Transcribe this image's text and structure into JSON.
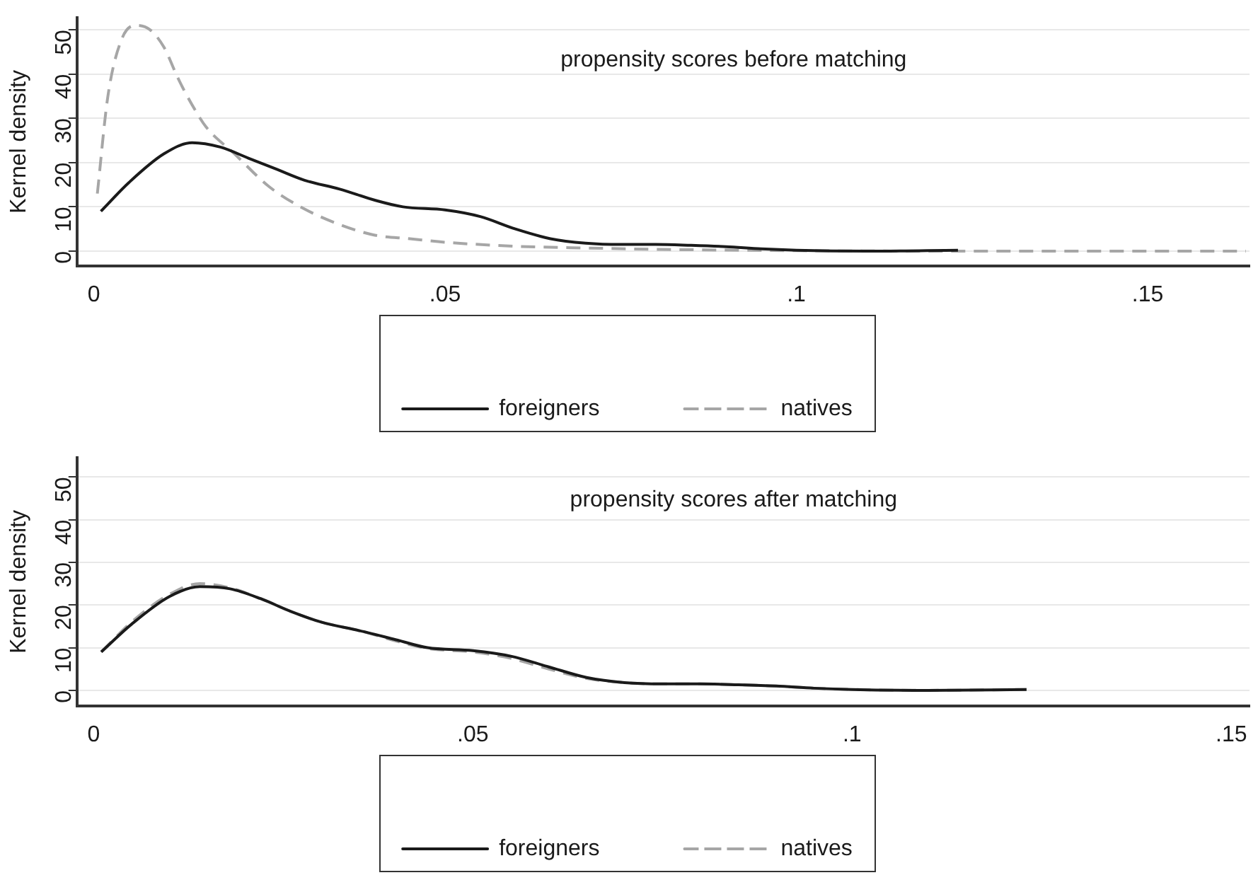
{
  "chart_data": [
    {
      "type": "line",
      "title": "propensity scores before matching",
      "ylabel": "Kernel density",
      "xlim": [
        -0.0024,
        0.1645
      ],
      "xticks": [
        0,
        {
          "value": 0.05,
          "label": ".05"
        },
        {
          "value": 0.1,
          "label": ".1"
        },
        {
          "value": 0.15,
          "label": ".15"
        }
      ],
      "ylim": [
        -3.3,
        52.7
      ],
      "yticks": [
        0,
        10,
        20,
        30,
        40,
        50
      ],
      "grid": "y",
      "legend": "bottom",
      "marker": "none",
      "series": [
        {
          "name": "foreigners",
          "color": "#1a1a1a",
          "line_style": "solid",
          "x": [
            0.001,
            0.005,
            0.01,
            0.014,
            0.018,
            0.022,
            0.026,
            0.03,
            0.035,
            0.04,
            0.044,
            0.05,
            0.055,
            0.06,
            0.065,
            0.07,
            0.075,
            0.08,
            0.085,
            0.09,
            0.095,
            0.1,
            0.11,
            0.123
          ],
          "values": [
            9,
            15.5,
            22,
            24.5,
            23.5,
            21,
            18.5,
            16,
            14,
            11.5,
            10,
            9.3,
            7.8,
            5,
            2.8,
            1.8,
            1.5,
            1.5,
            1.3,
            1,
            0.5,
            0.2,
            0,
            0.2
          ]
        },
        {
          "name": "natives",
          "color": "#a6a6a6",
          "line_style": "dashed",
          "x": [
            0.0005,
            0.002,
            0.004,
            0.006,
            0.008,
            0.01,
            0.012,
            0.014,
            0.016,
            0.02,
            0.025,
            0.03,
            0.035,
            0.04,
            0.045,
            0.05,
            0.06,
            0.07,
            0.08,
            0.1,
            0.12,
            0.164
          ],
          "values": [
            13,
            35,
            48,
            51,
            50,
            46,
            39,
            33,
            28,
            22,
            14.5,
            9.5,
            6,
            3.6,
            2.8,
            2,
            1.1,
            0.7,
            0.4,
            0.1,
            0,
            0
          ]
        }
      ]
    },
    {
      "type": "line",
      "title": "propensity scores after matching",
      "ylabel": "Kernel density",
      "xlim": [
        -0.0022,
        0.1524
      ],
      "xticks": [
        0,
        {
          "value": 0.05,
          "label": ".05"
        },
        {
          "value": 0.1,
          "label": ".1"
        },
        {
          "value": 0.15,
          "label": ".15"
        }
      ],
      "ylim": [
        -3.6,
        54.5
      ],
      "yticks": [
        0,
        10,
        20,
        30,
        40,
        50
      ],
      "grid": "y",
      "legend": "bottom",
      "marker": "none",
      "series": [
        {
          "name": "foreigners",
          "color": "#1a1a1a",
          "line_style": "solid",
          "x": [
            0.001,
            0.005,
            0.01,
            0.014,
            0.018,
            0.022,
            0.026,
            0.03,
            0.035,
            0.04,
            0.044,
            0.05,
            0.055,
            0.06,
            0.065,
            0.07,
            0.075,
            0.08,
            0.085,
            0.09,
            0.095,
            0.1,
            0.11,
            0.123
          ],
          "values": [
            9,
            15.5,
            22,
            24.3,
            23.8,
            21.5,
            18.5,
            16,
            14,
            11.8,
            10,
            9.3,
            8,
            5.5,
            3,
            1.8,
            1.5,
            1.5,
            1.3,
            1,
            0.5,
            0.2,
            0,
            0.2
          ]
        },
        {
          "name": "natives",
          "color": "#a6a6a6",
          "line_style": "dashed",
          "x": [
            0.001,
            0.005,
            0.01,
            0.014,
            0.018,
            0.022,
            0.026,
            0.03,
            0.035,
            0.04,
            0.044,
            0.05,
            0.055,
            0.06,
            0.065,
            0.07,
            0.075,
            0.08,
            0.085,
            0.09,
            0.095,
            0.1,
            0.11,
            0.123
          ],
          "values": [
            9,
            16,
            22.5,
            25,
            24,
            21.5,
            18.5,
            16,
            14,
            11.5,
            9.8,
            9,
            7.5,
            5,
            2.8,
            1.8,
            1.5,
            1.5,
            1.3,
            1,
            0.5,
            0.2,
            0,
            0.2
          ]
        }
      ]
    }
  ]
}
